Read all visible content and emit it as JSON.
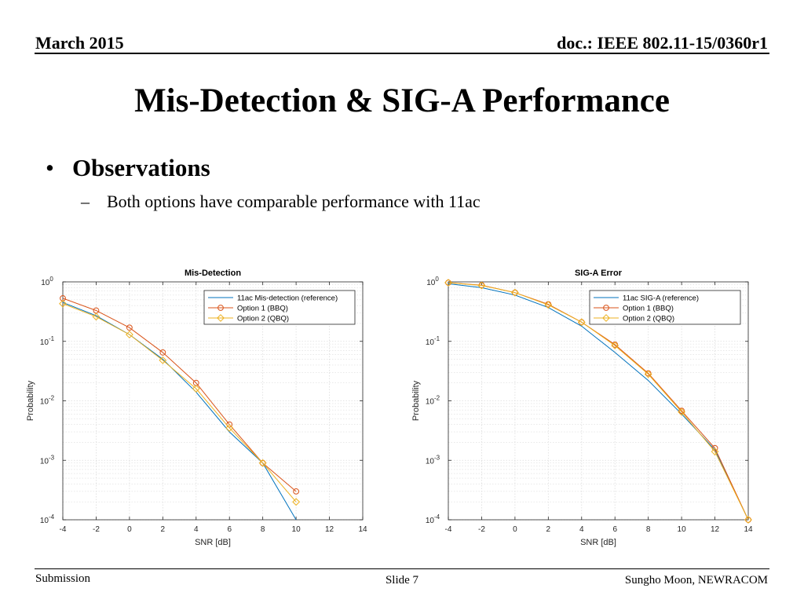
{
  "header": {
    "date": "March 2015",
    "doc": "doc.: IEEE 802.11-15/0360r1"
  },
  "title": "Mis-Detection & SIG-A Performance",
  "bullets": [
    {
      "text": "Observations",
      "subitems": [
        "Both options have comparable performance with 11ac"
      ]
    }
  ],
  "footer": {
    "left": "Submission",
    "center": "Slide 7",
    "right": "Sungho Moon, NEWRACOM"
  },
  "bullet_glyph": "•",
  "dash_glyph": "–",
  "chart_data": [
    {
      "type": "line",
      "title": "Mis-Detection",
      "xlabel": "SNR [dB]",
      "ylabel": "Probability",
      "xlim": [
        -4,
        14
      ],
      "xticks": [
        -4,
        -2,
        0,
        2,
        4,
        6,
        8,
        10,
        12,
        14
      ],
      "ylim": [
        0.0001,
        1
      ],
      "yscale": "log",
      "yticks": [
        {
          "base": "10",
          "exp": "0"
        },
        {
          "base": "10",
          "exp": "-1"
        },
        {
          "base": "10",
          "exp": "-2"
        },
        {
          "base": "10",
          "exp": "-3"
        },
        {
          "base": "10",
          "exp": "-4"
        }
      ],
      "grid": true,
      "legend_position": "top-right",
      "x": [
        -4,
        -2,
        0,
        2,
        4,
        6,
        8,
        10
      ],
      "series": [
        {
          "name": "11ac Mis-detection (reference)",
          "color": "#0072bd",
          "marker": "none",
          "values": [
            0.45,
            0.27,
            0.13,
            0.05,
            0.014,
            0.003,
            0.0009,
            0.0001
          ]
        },
        {
          "name": "Option 1 (BBQ)",
          "color": "#d95319",
          "marker": "circle",
          "values": [
            0.53,
            0.33,
            0.17,
            0.065,
            0.02,
            0.004,
            0.0009,
            0.0003
          ]
        },
        {
          "name": "Option 2 (QBQ)",
          "color": "#edb120",
          "marker": "diamond",
          "values": [
            0.43,
            0.26,
            0.13,
            0.048,
            0.016,
            0.0035,
            0.0009,
            0.0002
          ]
        }
      ]
    },
    {
      "type": "line",
      "title": "SIG-A Error",
      "xlabel": "SNR [dB]",
      "ylabel": "Probability",
      "xlim": [
        -4,
        14
      ],
      "xticks": [
        -4,
        -2,
        0,
        2,
        4,
        6,
        8,
        10,
        12,
        14
      ],
      "ylim": [
        0.0001,
        1
      ],
      "yscale": "log",
      "yticks": [
        {
          "base": "10",
          "exp": "0"
        },
        {
          "base": "10",
          "exp": "-1"
        },
        {
          "base": "10",
          "exp": "-2"
        },
        {
          "base": "10",
          "exp": "-3"
        },
        {
          "base": "10",
          "exp": "-4"
        }
      ],
      "grid": true,
      "legend_position": "top-right",
      "x": [
        -4,
        -2,
        0,
        2,
        4,
        6,
        8,
        10,
        12,
        14
      ],
      "series": [
        {
          "name": "11ac SIG-A (reference)",
          "color": "#0072bd",
          "marker": "none",
          "values": [
            0.93,
            0.8,
            0.6,
            0.37,
            0.18,
            0.065,
            0.022,
            0.006,
            0.0015,
            0.0001
          ]
        },
        {
          "name": "Option 1 (BBQ)",
          "color": "#d95319",
          "marker": "circle",
          "values": [
            0.97,
            0.88,
            0.66,
            0.42,
            0.21,
            0.088,
            0.029,
            0.0068,
            0.0016,
            0.0001
          ]
        },
        {
          "name": "Option 2 (QBQ)",
          "color": "#edb120",
          "marker": "diamond",
          "values": [
            0.97,
            0.87,
            0.66,
            0.41,
            0.21,
            0.085,
            0.028,
            0.0065,
            0.0014,
            0.0001
          ]
        }
      ]
    }
  ]
}
